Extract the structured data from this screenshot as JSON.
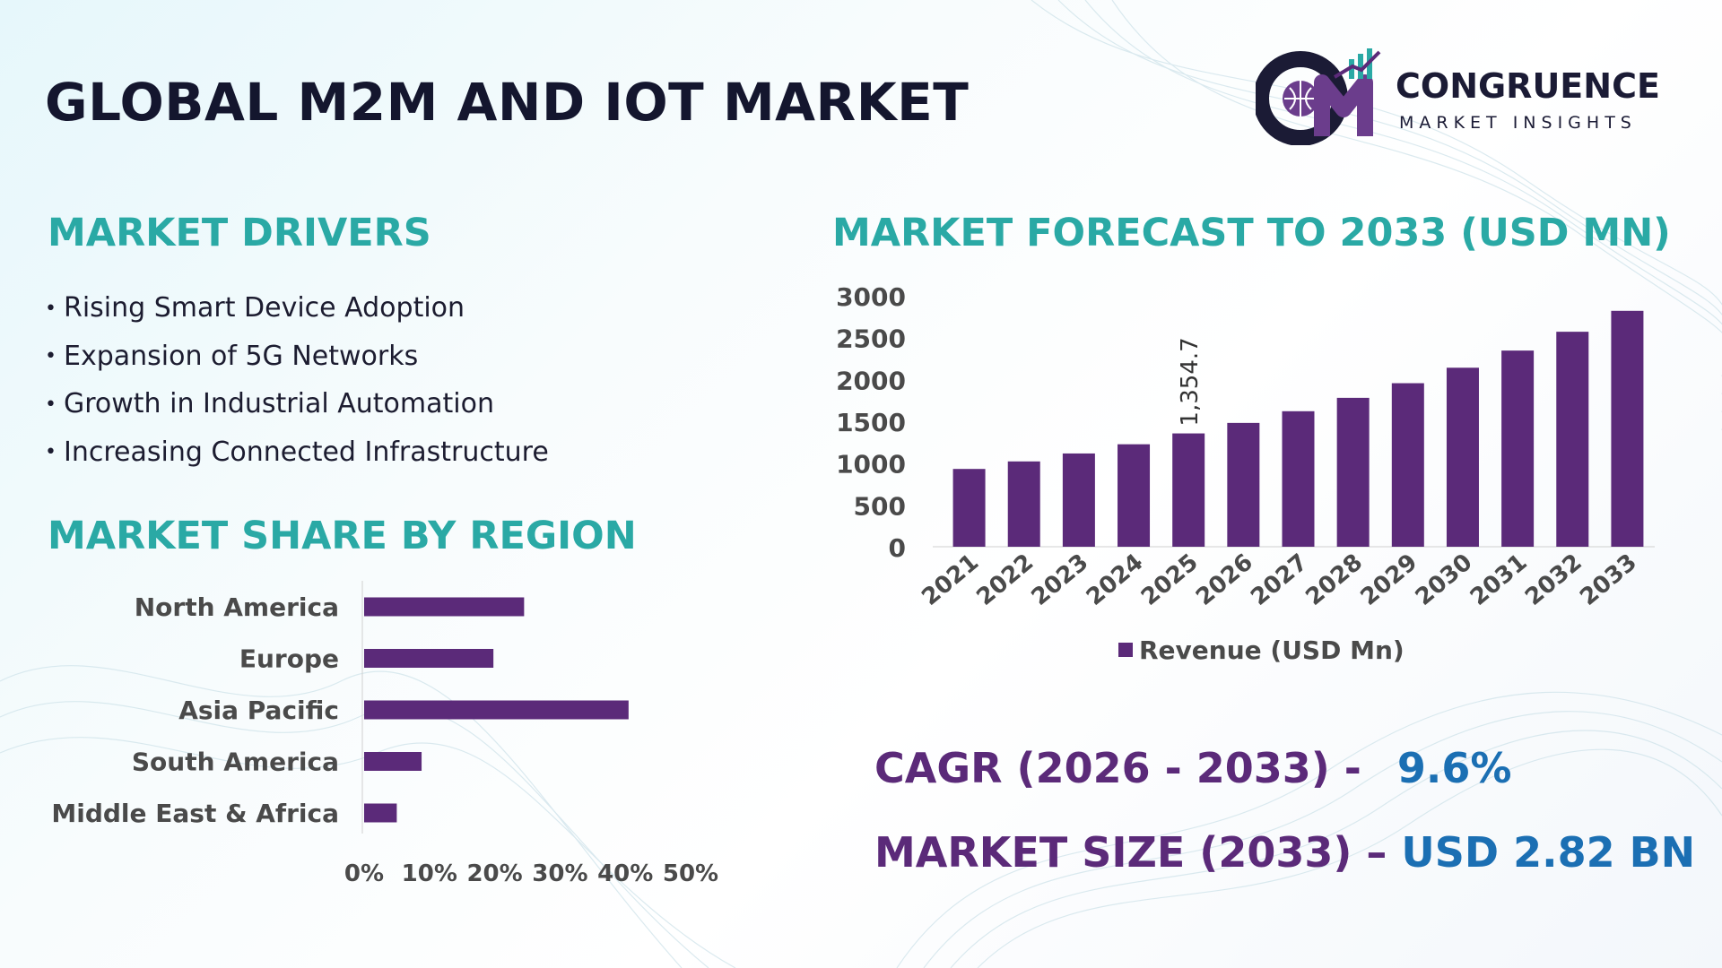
{
  "page": {
    "title": "GLOBAL M2M AND IOT MARKET",
    "logo": {
      "name": "CONGRUENCE",
      "subtitle": "MARKET INSIGHTS"
    }
  },
  "drivers": {
    "heading": "MARKET DRIVERS",
    "items": [
      "Rising Smart Device Adoption",
      "Expansion of 5G Networks",
      "Growth in Industrial Automation",
      "Increasing Connected Infrastructure"
    ]
  },
  "region": {
    "heading": "MARKET SHARE BY REGION"
  },
  "forecast": {
    "heading": "MARKET FORECAST TO 2033 (USD MN)"
  },
  "metrics": {
    "cagr_label": "CAGR (2026 - 2033) -",
    "cagr_value": "9.6%",
    "size_label": "MARKET SIZE (2033) –",
    "size_value": "USD 2.82 BN"
  },
  "colors": {
    "bar": "#5b2a79",
    "heading": "#2aa9a5",
    "title": "#14162e",
    "value": "#1b6fb3",
    "axis_text": "#4a4a4a"
  },
  "chart_data": [
    {
      "type": "bar",
      "orientation": "vertical",
      "title": "MARKET FORECAST TO 2033 (USD MN)",
      "categories": [
        "2021",
        "2022",
        "2023",
        "2024",
        "2025",
        "2026",
        "2027",
        "2028",
        "2029",
        "2030",
        "2031",
        "2032",
        "2033"
      ],
      "series": [
        {
          "name": "Revenue (USD Mn)",
          "values": [
            930,
            1020,
            1115,
            1225,
            1354.7,
            1480,
            1620,
            1780,
            1955,
            2140,
            2345,
            2570,
            2820
          ]
        }
      ],
      "data_labels": [
        {
          "category": "2025",
          "text": "1,354.7"
        }
      ],
      "yticks": [
        "0",
        "500",
        "1000",
        "1500",
        "2000",
        "2500",
        "3000"
      ],
      "ylim": [
        0,
        3000
      ],
      "grid": false,
      "legend": "bottom"
    },
    {
      "type": "bar",
      "orientation": "horizontal",
      "title": "MARKET SHARE BY REGION",
      "categories": [
        "North America",
        "Europe",
        "Asia Pacific",
        "South America",
        "Middle East & Africa"
      ],
      "values": [
        24.5,
        19.8,
        40.5,
        8.8,
        5.0
      ],
      "unit": "%",
      "xticks": [
        "0%",
        "10%",
        "20%",
        "30%",
        "40%",
        "50%"
      ],
      "xlim": [
        0,
        50
      ],
      "grid": false
    }
  ]
}
